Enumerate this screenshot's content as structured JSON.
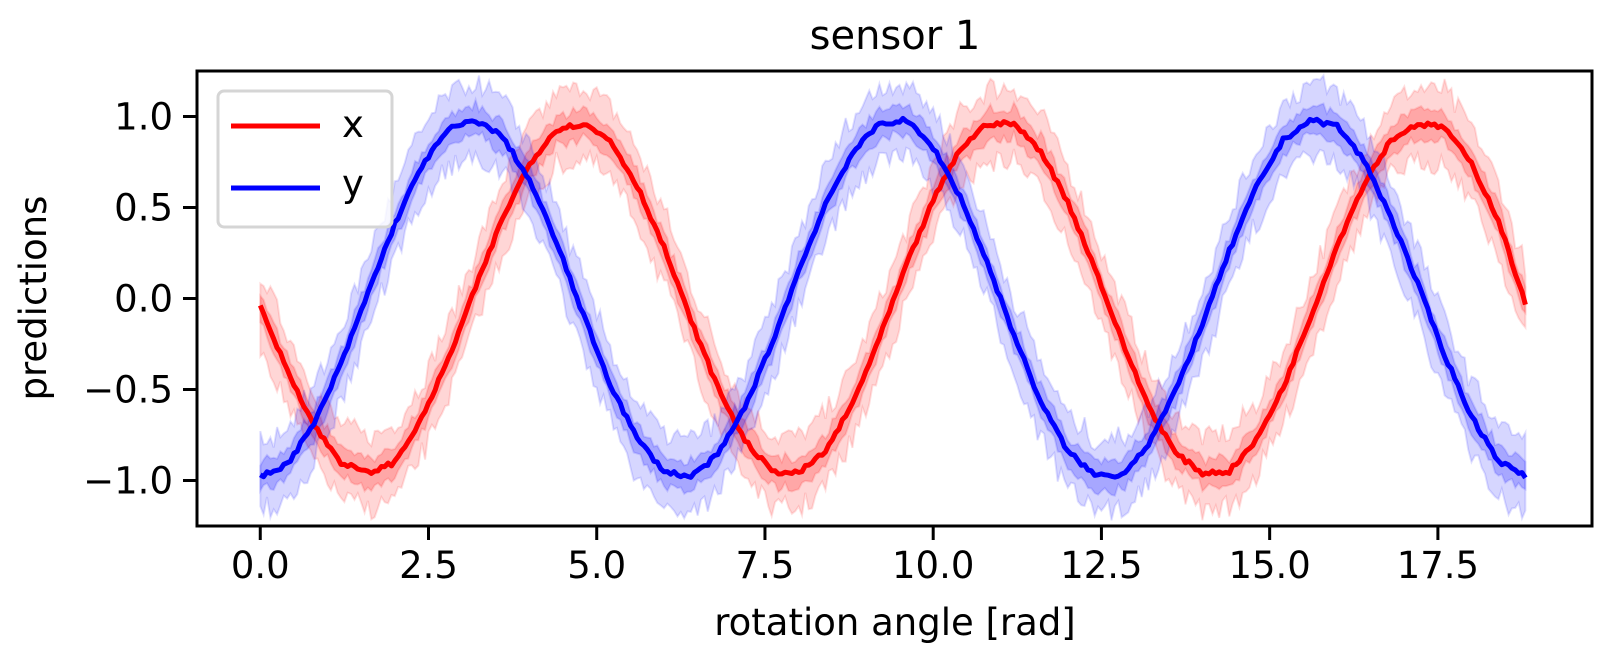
{
  "chart_data": {
    "type": "line",
    "title": "sensor 1",
    "xlabel": "rotation angle [rad]",
    "ylabel": "predictions",
    "xlim": [
      -0.94,
      19.79
    ],
    "ylim": [
      -1.25,
      1.25
    ],
    "xticks": [
      "0.0",
      "2.5",
      "5.0",
      "7.5",
      "10.0",
      "12.5",
      "15.0",
      "17.5"
    ],
    "xtick_values": [
      0,
      2.5,
      5,
      7.5,
      10,
      12.5,
      15,
      17.5
    ],
    "yticks": [
      "−1.0",
      "−0.5",
      "0.0",
      "0.5",
      "1.0"
    ],
    "ytick_values": [
      -1,
      -0.5,
      0,
      0.5,
      1
    ],
    "grid": false,
    "legend_position": "top-left",
    "x": [
      0,
      0.4,
      0.8,
      1.2,
      1.6,
      2.0,
      2.4,
      2.8,
      3.2,
      3.6,
      4.0,
      4.4,
      4.8,
      5.2,
      5.6,
      6.0,
      6.4,
      6.8,
      7.2,
      7.6,
      8.0,
      8.4,
      8.8,
      9.2,
      9.6,
      10.0,
      10.4,
      10.8,
      11.2,
      11.6,
      12.0,
      12.4,
      12.8,
      13.2,
      13.6,
      14.0,
      14.4,
      14.8,
      15.2,
      15.6,
      16.0,
      16.4,
      16.8,
      17.2,
      17.6,
      18.0,
      18.4,
      18.8
    ],
    "series": [
      {
        "name": "x",
        "color": "#ff0000",
        "band_inner": 0.08,
        "band_outer": 0.2,
        "values": [
          -0.05,
          -0.39,
          -0.7,
          -0.9,
          -0.96,
          -0.9,
          -0.66,
          -0.33,
          0.06,
          0.44,
          0.74,
          0.93,
          0.96,
          0.87,
          0.62,
          0.28,
          -0.12,
          -0.49,
          -0.78,
          -0.95,
          -0.96,
          -0.84,
          -0.58,
          -0.22,
          0.18,
          0.54,
          0.82,
          0.96,
          0.96,
          0.81,
          0.53,
          0.17,
          -0.23,
          -0.59,
          -0.85,
          -0.96,
          -0.95,
          -0.78,
          -0.49,
          -0.11,
          0.29,
          0.63,
          0.87,
          0.96,
          0.94,
          0.74,
          0.43,
          -0.03
        ]
      },
      {
        "name": "y",
        "color": "#0000ff",
        "band_inner": 0.08,
        "band_outer": 0.2,
        "values": [
          -0.98,
          -0.91,
          -0.69,
          -0.36,
          0.03,
          0.41,
          0.73,
          0.93,
          0.98,
          0.89,
          0.65,
          0.31,
          -0.09,
          -0.47,
          -0.77,
          -0.95,
          -0.98,
          -0.86,
          -0.6,
          -0.25,
          0.15,
          0.52,
          0.8,
          0.96,
          0.98,
          0.83,
          0.56,
          0.2,
          -0.2,
          -0.57,
          -0.84,
          -0.97,
          -0.97,
          -0.8,
          -0.51,
          -0.14,
          0.26,
          0.61,
          0.87,
          0.98,
          0.95,
          0.76,
          0.45,
          0.08,
          -0.31,
          -0.65,
          -0.89,
          -0.98
        ]
      }
    ]
  }
}
